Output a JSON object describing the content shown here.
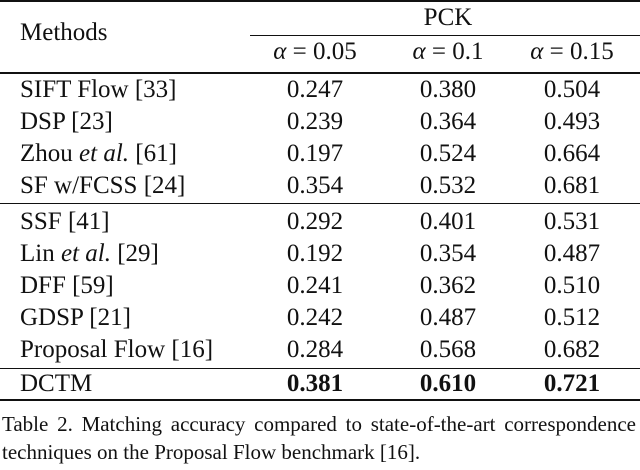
{
  "table": {
    "header": {
      "methods": "Methods",
      "group": "PCK",
      "columns": [
        {
          "symbol": "α",
          "eq": " = 0.05"
        },
        {
          "symbol": "α",
          "eq": " = 0.1"
        },
        {
          "symbol": "α",
          "eq": " = 0.15"
        }
      ]
    },
    "rows": [
      {
        "pre": "SIFT Flow [33]",
        "em": "",
        "post": "",
        "values": [
          "0.247",
          "0.380",
          "0.504"
        ]
      },
      {
        "pre": "DSP [23]",
        "em": "",
        "post": "",
        "values": [
          "0.239",
          "0.364",
          "0.493"
        ]
      },
      {
        "pre": "Zhou ",
        "em": "et al.",
        "post": " [61]",
        "values": [
          "0.197",
          "0.524",
          "0.664"
        ]
      },
      {
        "pre": "SF w/FCSS [24]",
        "em": "",
        "post": "",
        "values": [
          "0.354",
          "0.532",
          "0.681"
        ]
      },
      {
        "pre": "SSF [41]",
        "em": "",
        "post": "",
        "values": [
          "0.292",
          "0.401",
          "0.531"
        ]
      },
      {
        "pre": "Lin ",
        "em": "et al.",
        "post": " [29]",
        "values": [
          "0.192",
          "0.354",
          "0.487"
        ]
      },
      {
        "pre": "DFF [59]",
        "em": "",
        "post": "",
        "values": [
          "0.241",
          "0.362",
          "0.510"
        ]
      },
      {
        "pre": "GDSP [21]",
        "em": "",
        "post": "",
        "values": [
          "0.242",
          "0.487",
          "0.512"
        ]
      },
      {
        "pre": "Proposal Flow [16]",
        "em": "",
        "post": "",
        "values": [
          "0.284",
          "0.568",
          "0.682"
        ]
      },
      {
        "pre": "DCTM",
        "em": "",
        "post": "",
        "values": [
          "0.381",
          "0.610",
          "0.721"
        ]
      }
    ]
  },
  "caption": "Table 2. Matching accuracy compared to state-of-the-art correspondence techniques on the Proposal Flow benchmark [16]."
}
